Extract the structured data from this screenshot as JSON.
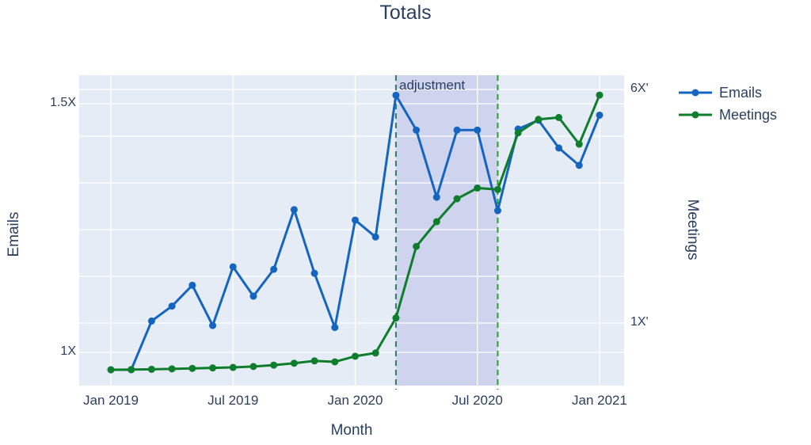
{
  "title": "Totals",
  "annotation": "adjustment",
  "axes": {
    "x": {
      "title": "Month",
      "tick_labels": [
        "Jan 2019",
        "Jul 2019",
        "Jan 2020",
        "Jul 2020",
        "Jan 2021"
      ],
      "tick_indices": [
        0,
        6,
        12,
        18,
        24
      ]
    },
    "y_left": {
      "title": "Emails",
      "ticks": [
        {
          "label": "1X",
          "value": 1
        },
        {
          "label": "1.5X",
          "value": 1.5
        }
      ],
      "grid_values": [
        1,
        1.5
      ]
    },
    "y_right": {
      "title": "Meetings",
      "ticks": [
        {
          "label": "1X'",
          "value": 1
        },
        {
          "label": "6X'",
          "value": 6
        }
      ],
      "grid_values": [
        1,
        2,
        3,
        4,
        5,
        6
      ]
    }
  },
  "legend": [
    {
      "label": "Emails",
      "color": "#1565c0"
    },
    {
      "label": "Meetings",
      "color": "#0e7d2c"
    }
  ],
  "colors": {
    "plot_background": "#E5ECF6",
    "gridline": "#ffffff",
    "text": "#2a3f5f",
    "emails_line": "#1565c0",
    "meetings_line": "#0e7d2c",
    "vline_start": "#2f7a6a",
    "vline_end": "#2ca02c",
    "shaded_region_fill": "rgba(90,90,200,0.16)"
  },
  "chart_data": {
    "type": "line",
    "x": [
      "Jan 2019",
      "Feb 2019",
      "Mar 2019",
      "Apr 2019",
      "May 2019",
      "Jun 2019",
      "Jul 2019",
      "Aug 2019",
      "Sep 2019",
      "Oct 2019",
      "Nov 2019",
      "Dec 2019",
      "Jan 2020",
      "Feb 2020",
      "Mar 2020",
      "Apr 2020",
      "May 2020",
      "Jun 2020",
      "Jul 2020",
      "Aug 2020",
      "Sep 2020",
      "Oct 2020",
      "Nov 2020",
      "Dec 2020",
      "Jan 2021"
    ],
    "series": [
      {
        "name": "Emails",
        "axis": "left",
        "color": "#1565c0",
        "values": [
          0.965,
          0.965,
          1.063,
          1.093,
          1.135,
          1.054,
          1.172,
          1.113,
          1.167,
          1.287,
          1.159,
          1.05,
          1.266,
          1.232,
          1.517,
          1.447,
          1.312,
          1.447,
          1.447,
          1.285,
          1.449,
          1.467,
          1.411,
          1.376,
          1.477
        ]
      },
      {
        "name": "Meetings",
        "axis": "right",
        "color": "#0e7d2c",
        "values": [
          0.0,
          0.005,
          0.01,
          0.02,
          0.03,
          0.04,
          0.05,
          0.07,
          0.1,
          0.14,
          0.19,
          0.17,
          0.29,
          0.36,
          1.11,
          2.64,
          3.17,
          3.66,
          3.89,
          3.86,
          5.07,
          5.36,
          5.4,
          4.83,
          5.88
        ]
      }
    ],
    "title": "Totals",
    "xlabel": "Month",
    "ylabel_left": "Emails",
    "ylabel_right": "Meetings",
    "ylim_left": [
      0.93,
      1.56
    ],
    "ylim_right": [
      -0.34,
      6.31
    ],
    "grid": true,
    "legend_position": "right-top-outside",
    "shaded_region": {
      "x0": "Mar 2020",
      "x1": "Aug 2020",
      "label": "adjustment"
    },
    "vlines": [
      {
        "x": "Mar 2020",
        "color": "#2f7a6a",
        "dash": true
      },
      {
        "x": "Aug 2020",
        "color": "#2ca02c",
        "dash": true
      }
    ]
  }
}
